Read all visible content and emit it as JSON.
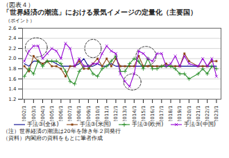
{
  "chart_data": {
    "type": "line",
    "title": "「世界経済の潮流」における景気イメージの定量化（主要国）",
    "subtitle": "（図表４）",
    "ylabel": "（ポイント）",
    "annotations": [
      "（注）世界経済の潮流は20年を除き年２回発行",
      "（資料）内閣府の資料をもとに筆者作成"
    ],
    "x": [
      2002,
      2002.5,
      2003,
      2003.5,
      2004,
      2004.5,
      2005,
      2005.5,
      2006,
      2006.5,
      2007,
      2007.5,
      2008,
      2008.5,
      2009,
      2009.5,
      2010,
      2010.5,
      2011,
      2011.5,
      2012,
      2012.5,
      2013,
      2013.5,
      2014,
      2014.5,
      2015,
      2015.5,
      2016,
      2016.5,
      2017,
      2017.5,
      2018,
      2018.5,
      2019,
      2019.5,
      2020,
      2021,
      2021.5,
      2022,
      2022.5,
      2023
    ],
    "xlim": [
      2001.8,
      2023.5
    ],
    "xticks": [
      {
        "value": 2002,
        "label": "2002/1"
      },
      {
        "value": 2003,
        "label": "2003/1"
      },
      {
        "value": 2004,
        "label": "2004/1"
      },
      {
        "value": 2005,
        "label": "2005/1"
      },
      {
        "value": 2006,
        "label": "2006/1"
      },
      {
        "value": 2007,
        "label": "2007/1"
      },
      {
        "value": 2008,
        "label": "2008/1"
      },
      {
        "value": 2009,
        "label": "2009/1"
      },
      {
        "value": 2010,
        "label": "2010/1"
      },
      {
        "value": 2011,
        "label": "2011/1"
      },
      {
        "value": 2012,
        "label": "2012/1"
      },
      {
        "value": 2013,
        "label": "2013/1"
      },
      {
        "value": 2014,
        "label": "2014/1"
      },
      {
        "value": 2015,
        "label": "2015/1"
      },
      {
        "value": 2016,
        "label": "2016/1"
      },
      {
        "value": 2017,
        "label": "2017/1"
      },
      {
        "value": 2018,
        "label": "2018/1"
      },
      {
        "value": 2019,
        "label": "2019/1"
      },
      {
        "value": 2020,
        "label": "2020/1"
      },
      {
        "value": 2021,
        "label": "2021/1"
      },
      {
        "value": 2022,
        "label": "2022/1"
      },
      {
        "value": 2023,
        "label": "2023/1"
      }
    ],
    "ylim": [
      1.2,
      2.6
    ],
    "yticks": [
      1.2,
      1.4,
      1.6,
      1.8,
      {
        "value": 2.0,
        "label": "2.0"
      },
      2.2,
      2.4,
      2.6
    ],
    "grid": true,
    "legend": "bottom",
    "series": [
      {
        "name": "手法③(全体)",
        "color": "#00008B",
        "marker": "none",
        "values": [
          1.9,
          1.85,
          1.95,
          1.95,
          1.9,
          1.95,
          1.95,
          1.9,
          1.85,
          1.85,
          1.85,
          1.85,
          1.9,
          2.0,
          1.85,
          1.85,
          1.9,
          1.85,
          1.85,
          1.9,
          1.85,
          1.85,
          1.85,
          1.85,
          1.85,
          1.85,
          1.85,
          1.85,
          1.85,
          1.85,
          1.85,
          1.85,
          1.85,
          1.85,
          1.85,
          1.85,
          1.85,
          1.85,
          1.85,
          1.85,
          1.85,
          1.85
        ]
      },
      {
        "name": "手法③(米国)",
        "color": "#8B4513",
        "marker": "square",
        "values": [
          1.85,
          1.75,
          2.05,
          1.95,
          1.9,
          1.95,
          1.85,
          1.85,
          1.8,
          1.65,
          1.85,
          1.85,
          1.95,
          1.8,
          1.8,
          1.9,
          2.0,
          1.85,
          2.0,
          1.85,
          2.0,
          1.85,
          1.85,
          1.85,
          1.85,
          2.05,
          1.85,
          1.85,
          1.85,
          1.85,
          1.85,
          1.9,
          1.85,
          1.85,
          1.85,
          2.1,
          1.95,
          1.85,
          1.85,
          1.85,
          1.95,
          1.95
        ]
      },
      {
        "name": "手法③(欧州)",
        "color": "#228B22",
        "marker": "plus",
        "values": [
          1.65,
          1.8,
          1.7,
          1.95,
          1.85,
          1.95,
          1.95,
          1.95,
          1.9,
          1.75,
          1.55,
          1.5,
          1.75,
          1.85,
          1.85,
          1.7,
          1.65,
          1.8,
          1.85,
          1.95,
          2.05,
          1.75,
          1.75,
          1.9,
          2.0,
          1.95,
          1.8,
          2.0,
          1.8,
          1.8,
          1.85,
          1.85,
          1.85,
          1.8,
          1.7,
          1.7,
          1.6,
          1.7,
          1.8,
          1.7,
          1.85,
          1.8
        ]
      },
      {
        "name": "手法③(中国)",
        "color": "#9400D3",
        "marker": "x",
        "values": [
          1.95,
          2.15,
          2.25,
          2.25,
          2.0,
          2.1,
          2.2,
          2.15,
          2.0,
          2.3,
          2.2,
          1.85,
          2.0,
          1.85,
          1.85,
          1.9,
          1.9,
          2.1,
          2.25,
          2.15,
          2.1,
          1.7,
          1.55,
          1.45,
          1.7,
          2.15,
          2.1,
          2.0,
          1.95,
          2.1,
          2.1,
          1.85,
          1.9,
          2.05,
          1.85,
          2.05,
          1.9,
          1.85,
          2.0,
          1.85,
          2.0,
          1.65
        ]
      }
    ],
    "ellipses": [
      {
        "x": 2003.3,
        "y": 2.22,
        "width": 2.4,
        "height": 0.38
      },
      {
        "x": 2009.5,
        "y": 2.2,
        "width": 1.8,
        "height": 0.36
      },
      {
        "x": 2013.8,
        "y": 1.54,
        "width": 1.9,
        "height": 0.32
      },
      {
        "x": 2015.3,
        "y": 2.05,
        "width": 2.2,
        "height": 0.38
      }
    ]
  }
}
